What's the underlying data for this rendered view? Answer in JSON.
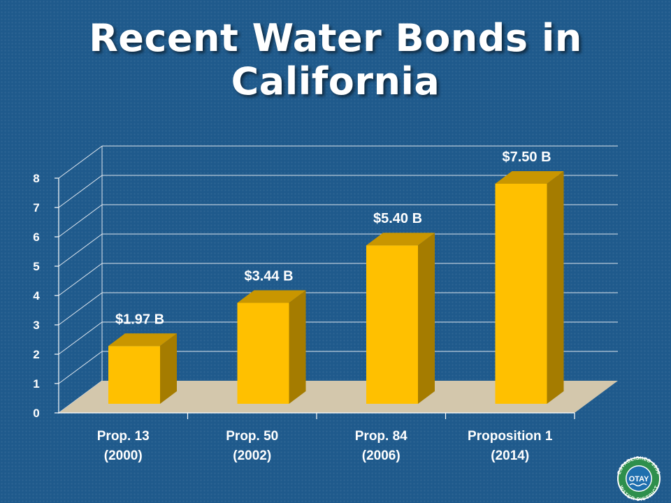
{
  "title_lines": [
    "Recent Water Bonds in",
    "California"
  ],
  "chart_data": {
    "type": "bar",
    "categories": [
      [
        "Prop. 13",
        "(2000)"
      ],
      [
        "Prop. 50",
        "(2002)"
      ],
      [
        "Prop. 84",
        "(2006)"
      ],
      [
        "Proposition 1",
        "(2014)"
      ]
    ],
    "values": [
      1.97,
      3.44,
      5.4,
      7.5
    ],
    "data_labels": [
      "$1.97 B",
      "$3.44 B",
      "$5.40 B",
      "$7.50 B"
    ],
    "y_ticks": [
      "0",
      "1",
      "2",
      "3",
      "4",
      "5",
      "6",
      "7",
      "8"
    ],
    "ylim": [
      0,
      8
    ],
    "grid": true,
    "legend": "none",
    "bar_color": "#ffc000",
    "bar_side_color": "#a57c00",
    "bar_top_color": "#c99600",
    "floor_color": "#d3c7ac",
    "grid_color": "#dfe6ee",
    "label_color": "#ffffff"
  },
  "logo": {
    "top_text": "ESTABLISHED 1956",
    "center_text": "OTAY",
    "bottom_text": "WATER DISTRICT"
  }
}
